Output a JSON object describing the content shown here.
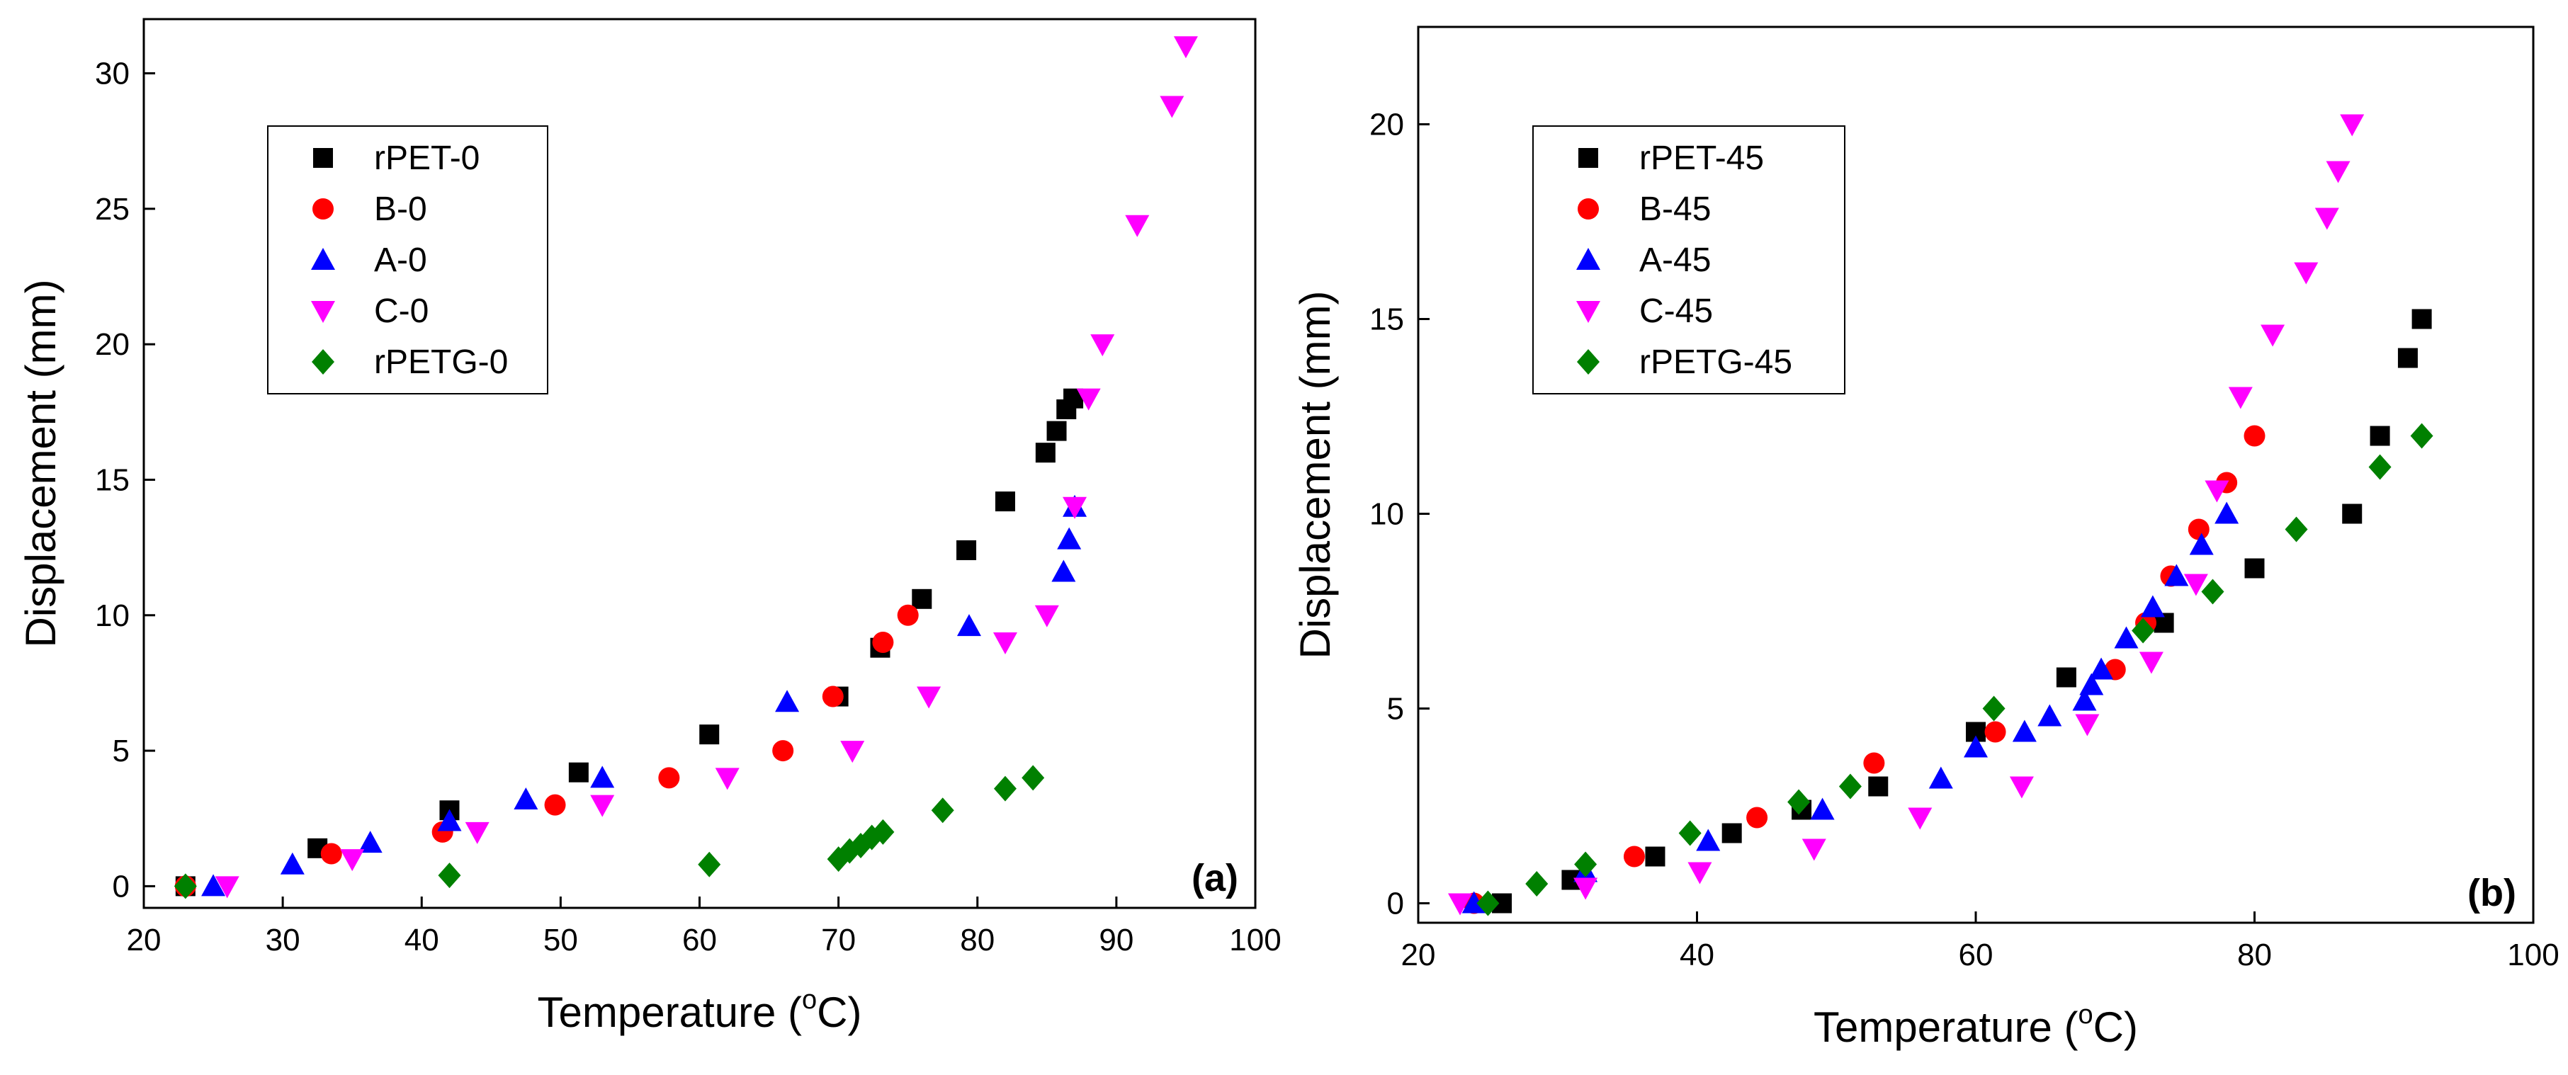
{
  "colors": {
    "rPET": "#000000",
    "B": "#ff0000",
    "A": "#0000ff",
    "C": "#ff00ff",
    "rPETG": "#008000"
  },
  "chart_data": [
    {
      "type": "scatter",
      "panel_label": "(a)",
      "xlabel": "Temperature (",
      "xlabel_sup": "o",
      "xlabel_tail": "C)",
      "ylabel": "Displacement (mm)",
      "xlim": [
        20,
        100
      ],
      "ylim": [
        -0.8,
        32
      ],
      "xticks": [
        20,
        30,
        40,
        50,
        60,
        70,
        80,
        90,
        100
      ],
      "yticks": [
        0,
        5,
        10,
        15,
        20,
        25,
        30
      ],
      "legend_position": "top-left",
      "series": [
        {
          "name": "rPET-0",
          "marker": "square",
          "color_key": "rPET",
          "x": [
            23,
            32.5,
            42,
            51.3,
            60.7,
            70,
            73,
            76,
            79.2,
            82,
            84.9,
            85.7,
            86.4,
            86.9
          ],
          "y": [
            0,
            1.4,
            2.8,
            4.2,
            5.6,
            7,
            8.8,
            10.6,
            12.4,
            14.2,
            16,
            16.8,
            17.6,
            18
          ]
        },
        {
          "name": "B-0",
          "marker": "circle",
          "color_key": "B",
          "x": [
            23,
            33.5,
            41.5,
            49.6,
            57.8,
            66,
            69.6,
            73.2,
            75
          ],
          "y": [
            0,
            1.2,
            2,
            3,
            4,
            5,
            7,
            9,
            10
          ]
        },
        {
          "name": "A-0",
          "marker": "triangle-up",
          "color_key": "A",
          "x": [
            25,
            30.7,
            36.3,
            42,
            47.5,
            53,
            66.3,
            79.4,
            86.2,
            86.6,
            87
          ],
          "y": [
            0,
            0.8,
            1.6,
            2.4,
            3.2,
            4,
            6.8,
            9.6,
            11.6,
            12.8,
            14
          ]
        },
        {
          "name": "C-0",
          "marker": "triangle-down",
          "color_key": "C",
          "x": [
            26,
            35,
            44,
            53,
            62,
            71,
            76.5,
            82,
            85,
            87,
            88,
            89,
            91.5,
            94,
            95
          ],
          "y": [
            0,
            1,
            2,
            3,
            4,
            5,
            7,
            9,
            10,
            14,
            18,
            20,
            24.4,
            28.8,
            31
          ]
        },
        {
          "name": "rPETG-0",
          "marker": "diamond",
          "color_key": "rPETG",
          "x": [
            23,
            42,
            60.7,
            70,
            70.8,
            71.6,
            72.4,
            73.2,
            77.5,
            82,
            84
          ],
          "y": [
            0,
            0.4,
            0.8,
            1,
            1.3,
            1.5,
            1.8,
            2,
            2.8,
            3.6,
            4
          ]
        }
      ]
    },
    {
      "type": "scatter",
      "panel_label": "(b)",
      "xlabel": "Temperature (",
      "xlabel_sup": "o",
      "xlabel_tail": "C)",
      "ylabel": "Displacement (mm)",
      "xlim": [
        20,
        100
      ],
      "ylim": [
        -0.5,
        22.5
      ],
      "xticks": [
        20,
        40,
        60,
        80,
        100
      ],
      "yticks": [
        0,
        5,
        10,
        15,
        20
      ],
      "legend_position": "top-left",
      "series": [
        {
          "name": "rPET-45",
          "marker": "square",
          "color_key": "rPET",
          "x": [
            26,
            31,
            37,
            42.5,
            47.5,
            53,
            60,
            66.5,
            73.5,
            80,
            87,
            89,
            91,
            92
          ],
          "y": [
            0,
            0.6,
            1.2,
            1.8,
            2.4,
            3,
            4.4,
            5.8,
            7.2,
            8.6,
            10,
            12,
            14,
            15
          ]
        },
        {
          "name": "B-45",
          "marker": "circle",
          "color_key": "B",
          "x": [
            24,
            35.5,
            44.3,
            52.7,
            61.4,
            70,
            72.2,
            74,
            76,
            78,
            80
          ],
          "y": [
            0,
            1.2,
            2.2,
            3.6,
            4.4,
            6,
            7.2,
            8.4,
            9.6,
            10.8,
            12
          ]
        },
        {
          "name": "A-45",
          "marker": "triangle-up",
          "color_key": "A",
          "x": [
            24,
            32,
            40.8,
            49,
            57.5,
            60,
            63.5,
            65.3,
            67.8,
            68.3,
            69,
            70.8,
            72.7,
            74.4,
            76.2,
            78
          ],
          "y": [
            0,
            0.8,
            1.6,
            2.4,
            3.2,
            4,
            4.4,
            4.8,
            5.2,
            5.6,
            6,
            6.8,
            7.6,
            8.4,
            9.2,
            10
          ]
        },
        {
          "name": "C-45",
          "marker": "triangle-down",
          "color_key": "C",
          "x": [
            23,
            32,
            40.2,
            48.4,
            56,
            63.3,
            68,
            72.6,
            75.8,
            77.3,
            79,
            81.3,
            83.7,
            85.2,
            86,
            87
          ],
          "y": [
            0,
            0.4,
            0.8,
            1.4,
            2.2,
            3,
            4.6,
            6.2,
            8.2,
            10.6,
            13,
            14.6,
            16.2,
            17.6,
            18.8,
            20
          ]
        },
        {
          "name": "rPETG-45",
          "marker": "diamond",
          "color_key": "rPETG",
          "x": [
            25,
            28.5,
            32,
            39.5,
            47.3,
            51,
            61.3,
            72,
            77,
            83,
            89,
            92
          ],
          "y": [
            0,
            0.5,
            1,
            1.8,
            2.6,
            3,
            5,
            7,
            8,
            9.6,
            11.2,
            12
          ]
        }
      ]
    }
  ]
}
